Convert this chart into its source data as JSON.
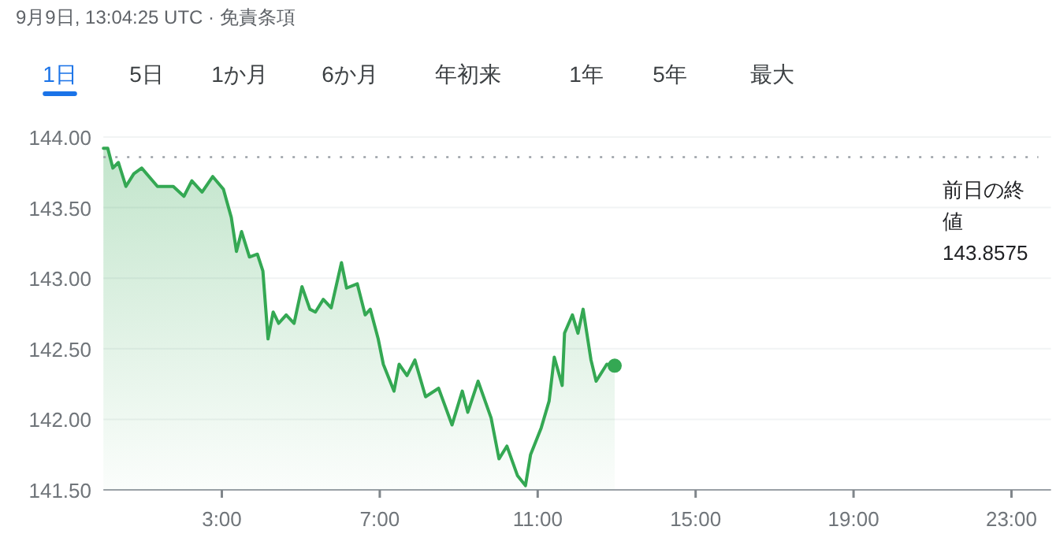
{
  "chart_data": {
    "type": "area",
    "title": "9月9日, 13:04:25 UTC · 免責条項",
    "annotations": [
      "1日",
      "5日",
      "1か月",
      "6か月",
      "年初来",
      "1年",
      "5年",
      "最大"
    ],
    "series": [
      {
        "color": "#34a853",
        "x": [
          0,
          0.11,
          0.24,
          0.38,
          0.57,
          0.77,
          0.97,
          1.37,
          1.77,
          2.04,
          2.24,
          2.5,
          2.77,
          3.04,
          3.24,
          3.37,
          3.5,
          3.7,
          3.9,
          4.04,
          4.17,
          4.3,
          4.44,
          4.63,
          4.83,
          5.03,
          5.23,
          5.37,
          5.57,
          5.77,
          6.03,
          6.16,
          6.43,
          6.63,
          6.76,
          6.96,
          7.09,
          7.36,
          7.49,
          7.69,
          7.89,
          8.16,
          8.49,
          8.83,
          9.09,
          9.23,
          9.49,
          9.82,
          10.02,
          10.22,
          10.49,
          10.69,
          10.82,
          11.09,
          11.29,
          11.42,
          11.62,
          11.68,
          11.88,
          12.02,
          12.15,
          12.35,
          12.48,
          12.75,
          12.95
        ],
        "values": [
          143.92,
          143.92,
          143.78,
          143.82,
          143.65,
          143.74,
          143.78,
          143.65,
          143.65,
          143.58,
          143.69,
          143.61,
          143.72,
          143.63,
          143.43,
          143.19,
          143.33,
          143.15,
          143.17,
          143.05,
          142.57,
          142.76,
          142.68,
          142.74,
          142.68,
          142.94,
          142.78,
          142.76,
          142.85,
          142.79,
          143.11,
          142.93,
          142.96,
          142.74,
          142.78,
          142.57,
          142.39,
          142.2,
          142.39,
          142.31,
          142.42,
          142.16,
          142.22,
          141.96,
          142.2,
          142.05,
          142.27,
          142.01,
          141.72,
          141.81,
          141.6,
          141.53,
          141.75,
          141.94,
          142.13,
          142.44,
          142.24,
          142.61,
          142.74,
          142.61,
          142.78,
          142.42,
          142.27,
          142.39,
          142.38
        ]
      }
    ],
    "xlim": [
      0,
      24
    ],
    "xticks": [
      {
        "value": 3,
        "label": "3:00"
      },
      {
        "value": 7,
        "label": "7:00"
      },
      {
        "value": 11,
        "label": "11:00"
      },
      {
        "value": 15,
        "label": "15:00"
      },
      {
        "value": 19,
        "label": "19:00"
      },
      {
        "value": 23,
        "label": "23:00"
      }
    ],
    "ylim": [
      141.5,
      144
    ],
    "yticks": [
      {
        "value": 141.5,
        "label": "141.50"
      },
      {
        "value": 142,
        "label": "142.00"
      },
      {
        "value": 142.5,
        "label": "142.50"
      },
      {
        "value": 143,
        "label": "143.00"
      },
      {
        "value": 143.5,
        "label": "143.50"
      },
      {
        "value": 144,
        "label": "144.00"
      }
    ],
    "grid": "y",
    "ref_lines": [
      {
        "axis": "y",
        "value": 143.8575,
        "label": "前日の終値 143.8575",
        "line_style": "dotted",
        "color": "#9aa0a6"
      }
    ]
  }
}
